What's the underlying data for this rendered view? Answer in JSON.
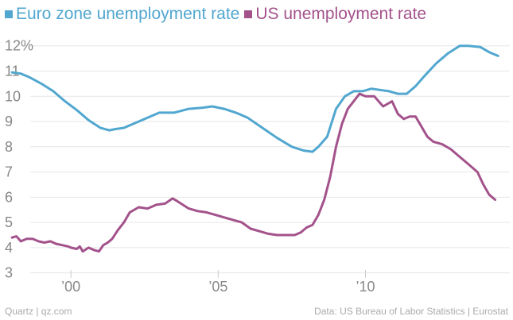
{
  "chart_data": {
    "type": "line",
    "legend_position": "top-left",
    "grid": true,
    "ylim": [
      2.8,
      12.4
    ],
    "xlim": [
      1997.7,
      2014.9
    ],
    "yticks": [
      3,
      4,
      5,
      6,
      7,
      8,
      9,
      10,
      11,
      12
    ],
    "yticklabels": [
      "3",
      "4",
      "5",
      "6",
      "7",
      "8",
      "9",
      "10",
      "11",
      "12%"
    ],
    "xticks": [
      2000,
      2005,
      2010
    ],
    "xticklabels": [
      "’00",
      "’05",
      "’10"
    ],
    "series": [
      {
        "name": "Euro zone unemployment rate",
        "color": "#51a7cf",
        "x": [
          1998.0,
          1998.3,
          1998.6,
          1999.0,
          1999.4,
          1999.8,
          2000.2,
          2000.6,
          2001.0,
          2001.3,
          2001.5,
          2001.8,
          2002.2,
          2002.6,
          2003.0,
          2003.5,
          2004.0,
          2004.5,
          2004.8,
          2005.2,
          2005.6,
          2006.0,
          2006.5,
          2007.0,
          2007.5,
          2007.9,
          2008.2,
          2008.4,
          2008.7,
          2009.0,
          2009.3,
          2009.6,
          2009.9,
          2010.2,
          2010.5,
          2010.8,
          2011.1,
          2011.4,
          2011.7,
          2012.0,
          2012.4,
          2012.8,
          2013.2,
          2013.5,
          2013.9,
          2014.2,
          2014.5
        ],
        "values": [
          10.95,
          10.9,
          10.75,
          10.5,
          10.2,
          9.8,
          9.45,
          9.05,
          8.75,
          8.65,
          8.7,
          8.75,
          8.95,
          9.15,
          9.35,
          9.35,
          9.5,
          9.55,
          9.6,
          9.5,
          9.35,
          9.15,
          8.75,
          8.35,
          8.0,
          7.85,
          7.8,
          8.0,
          8.4,
          9.5,
          10.0,
          10.2,
          10.2,
          10.3,
          10.25,
          10.2,
          10.1,
          10.1,
          10.4,
          10.8,
          11.3,
          11.7,
          12.0,
          12.0,
          11.95,
          11.75,
          11.6
        ]
      },
      {
        "name": "US unemployment rate",
        "color": "#a3528b",
        "x": [
          1998.0,
          1998.15,
          1998.3,
          1998.5,
          1998.7,
          1998.9,
          1999.1,
          1999.3,
          1999.5,
          1999.7,
          1999.9,
          2000.0,
          2000.2,
          2000.3,
          2000.4,
          2000.6,
          2000.8,
          2000.95,
          2001.1,
          2001.25,
          2001.4,
          2001.6,
          2001.8,
          2002.0,
          2002.3,
          2002.6,
          2002.9,
          2003.2,
          2003.45,
          2003.6,
          2003.8,
          2004.0,
          2004.3,
          2004.6,
          2004.9,
          2005.2,
          2005.5,
          2005.8,
          2006.1,
          2006.4,
          2006.7,
          2007.0,
          2007.3,
          2007.6,
          2007.8,
          2008.0,
          2008.2,
          2008.4,
          2008.6,
          2008.8,
          2009.0,
          2009.2,
          2009.4,
          2009.6,
          2009.8,
          2010.0,
          2010.3,
          2010.6,
          2010.9,
          2011.1,
          2011.3,
          2011.5,
          2011.7,
          2011.9,
          2012.1,
          2012.3,
          2012.6,
          2012.9,
          2013.2,
          2013.5,
          2013.8,
          2014.0,
          2014.2,
          2014.4
        ],
        "values": [
          4.4,
          4.45,
          4.25,
          4.35,
          4.35,
          4.25,
          4.2,
          4.25,
          4.15,
          4.1,
          4.05,
          4.0,
          3.95,
          4.05,
          3.85,
          4.0,
          3.9,
          3.85,
          4.1,
          4.2,
          4.35,
          4.7,
          5.0,
          5.4,
          5.6,
          5.55,
          5.7,
          5.75,
          5.95,
          5.85,
          5.7,
          5.55,
          5.45,
          5.4,
          5.3,
          5.2,
          5.1,
          5.0,
          4.75,
          4.65,
          4.55,
          4.5,
          4.5,
          4.5,
          4.6,
          4.8,
          4.9,
          5.3,
          5.9,
          6.8,
          8.0,
          8.9,
          9.5,
          9.8,
          10.1,
          10.0,
          10.0,
          9.6,
          9.8,
          9.3,
          9.1,
          9.2,
          9.2,
          8.8,
          8.4,
          8.2,
          8.1,
          7.9,
          7.6,
          7.3,
          7.0,
          6.5,
          6.1,
          5.9
        ]
      }
    ]
  },
  "footer": {
    "left": "Quartz | qz.com",
    "right": "Data: US Bureau of Labor Statistics | Eurostat"
  }
}
